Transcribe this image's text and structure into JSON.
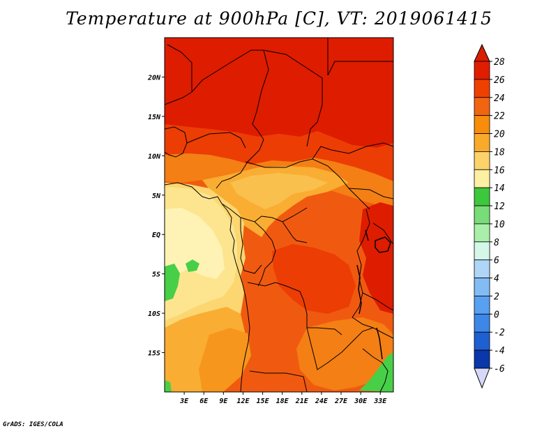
{
  "title": "Temperature at 900hPa [C], VT: 2019061415",
  "credit": "GrADS: IGES/COLA",
  "lat_labels": [
    "20N",
    "15N",
    "10N",
    "5N",
    "EQ",
    "5S",
    "10S",
    "15S"
  ],
  "lat_values": [
    20,
    15,
    10,
    5,
    0,
    -5,
    -10,
    -15
  ],
  "lon_labels": [
    "3E",
    "6E",
    "9E",
    "12E",
    "15E",
    "18E",
    "21E",
    "24E",
    "27E",
    "30E",
    "33E"
  ],
  "lon_values": [
    3,
    6,
    9,
    12,
    15,
    18,
    21,
    24,
    27,
    30,
    33
  ],
  "map_extent": {
    "lon_min": 0,
    "lon_max": 35,
    "lat_min": -20,
    "lat_max": 25
  },
  "colorbar": {
    "levels": [
      "28",
      "26",
      "24",
      "22",
      "20",
      "18",
      "16",
      "14",
      "12",
      "10",
      "8",
      "6",
      "4",
      "2",
      "0",
      "-2",
      "-4",
      "-6"
    ],
    "colors_top_to_bottom": [
      "#e11d00",
      "#f04000",
      "#f26510",
      "#f78d0a",
      "#faaa2a",
      "#fcd26a",
      "#fdf0a2",
      "#3cc83c",
      "#78dc78",
      "#a9efa9",
      "#d4f7ea",
      "#afd6f7",
      "#82bcf4",
      "#5aa0f0",
      "#3c87e8",
      "#1e5fd2",
      "#0a37aa",
      "#050e5a"
    ],
    "top_triangle_color": "#d71e00",
    "bottom_triangle_color": "#d8d8f8"
  },
  "field_colors": {
    "t27": "#de1c00",
    "t26": "#ec3d05",
    "t25": "#f05a10",
    "t24": "#f47f14",
    "t23": "#f6961c",
    "t22": "#f9ad32",
    "t21": "#fac04e",
    "t20": "#fcd670",
    "t19": "#fde590",
    "t18": "#fef3b4",
    "t14": "#48cf48"
  }
}
